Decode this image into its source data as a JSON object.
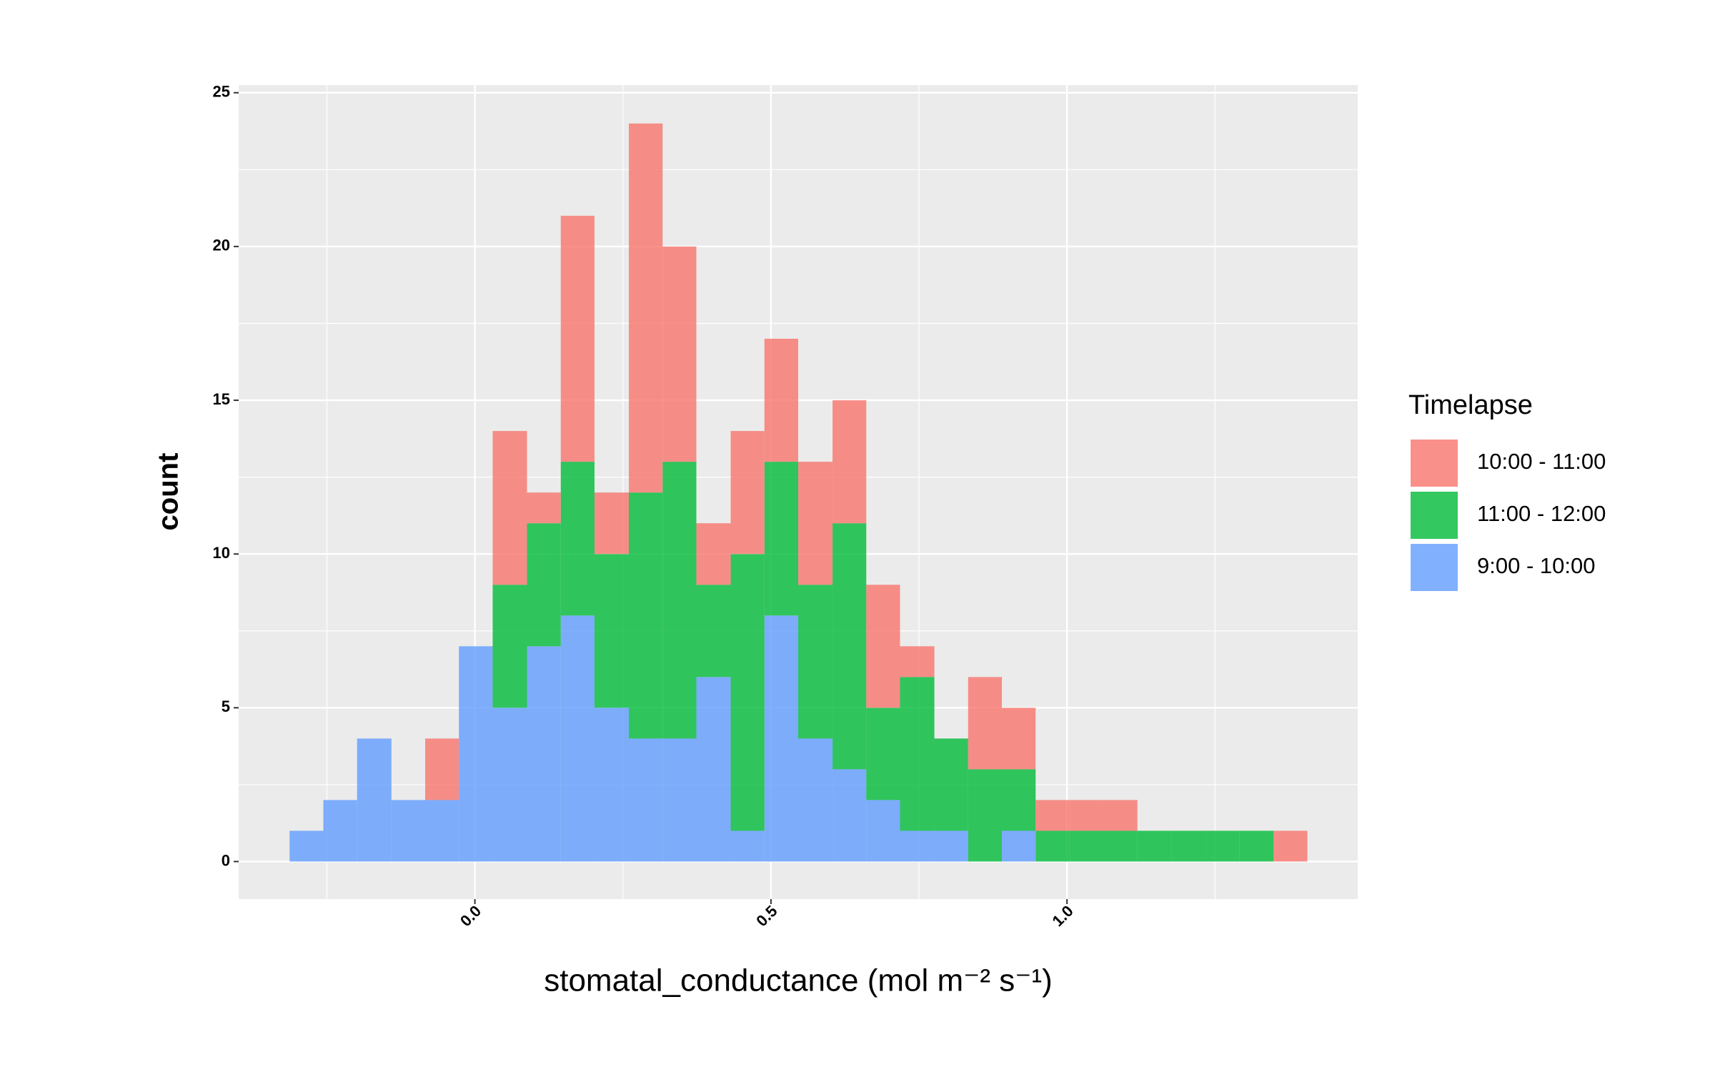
{
  "chart_data": {
    "type": "histogram",
    "x_label": "stomatal_conductance (mol m⁻² s⁻¹)",
    "y_label": "count",
    "legend_title": "Timelapse",
    "legend_position": "right",
    "stacked": true,
    "alpha": 0.8,
    "grid": true,
    "bins": [
      -0.313,
      -0.256,
      -0.199,
      -0.141,
      -0.084,
      -0.027,
      0.03,
      0.088,
      0.145,
      0.202,
      0.26,
      0.317,
      0.374,
      0.432,
      0.489,
      0.546,
      0.604,
      0.661,
      0.718,
      0.776,
      0.833,
      0.89,
      0.947,
      1.005,
      1.062,
      1.119,
      1.177,
      1.234,
      1.291,
      1.349,
      1.406
    ],
    "series": [
      {
        "name": "10:00 - 11:00",
        "color": "#F8766D",
        "values": [
          0,
          0,
          0,
          0,
          2,
          0,
          5,
          1,
          8,
          2,
          12,
          7,
          2,
          4,
          4,
          4,
          4,
          4,
          1,
          0,
          3,
          2,
          1,
          1,
          1,
          0,
          0,
          0,
          0,
          1
        ]
      },
      {
        "name": "11:00 - 12:00",
        "color": "#00BA38",
        "values": [
          0,
          0,
          0,
          0,
          0,
          0,
          4,
          4,
          5,
          5,
          8,
          9,
          3,
          9,
          5,
          5,
          8,
          3,
          5,
          3,
          3,
          2,
          1,
          1,
          1,
          1,
          1,
          1,
          1,
          0
        ]
      },
      {
        "name": "9:00 - 10:00",
        "color": "#619CFF",
        "values": [
          1,
          2,
          4,
          2,
          2,
          7,
          5,
          7,
          8,
          5,
          4,
          4,
          6,
          1,
          8,
          4,
          3,
          2,
          1,
          1,
          0,
          1,
          0,
          0,
          0,
          0,
          0,
          0,
          0,
          0
        ]
      }
    ],
    "xlim": [
      -0.399,
      1.491
    ],
    "ylim": [
      -1.22,
      25.25
    ],
    "xticks": [
      {
        "value": 0,
        "label": "0.0"
      },
      0.5,
      {
        "value": 1,
        "label": "1.0"
      }
    ],
    "xminor_ticks": [
      -0.25,
      0.25,
      0.75,
      1.25
    ],
    "yticks": [
      0,
      5,
      10,
      15,
      20,
      25
    ],
    "yminor_ticks": [
      2.5,
      7.5,
      12.5,
      17.5,
      22.5
    ]
  }
}
